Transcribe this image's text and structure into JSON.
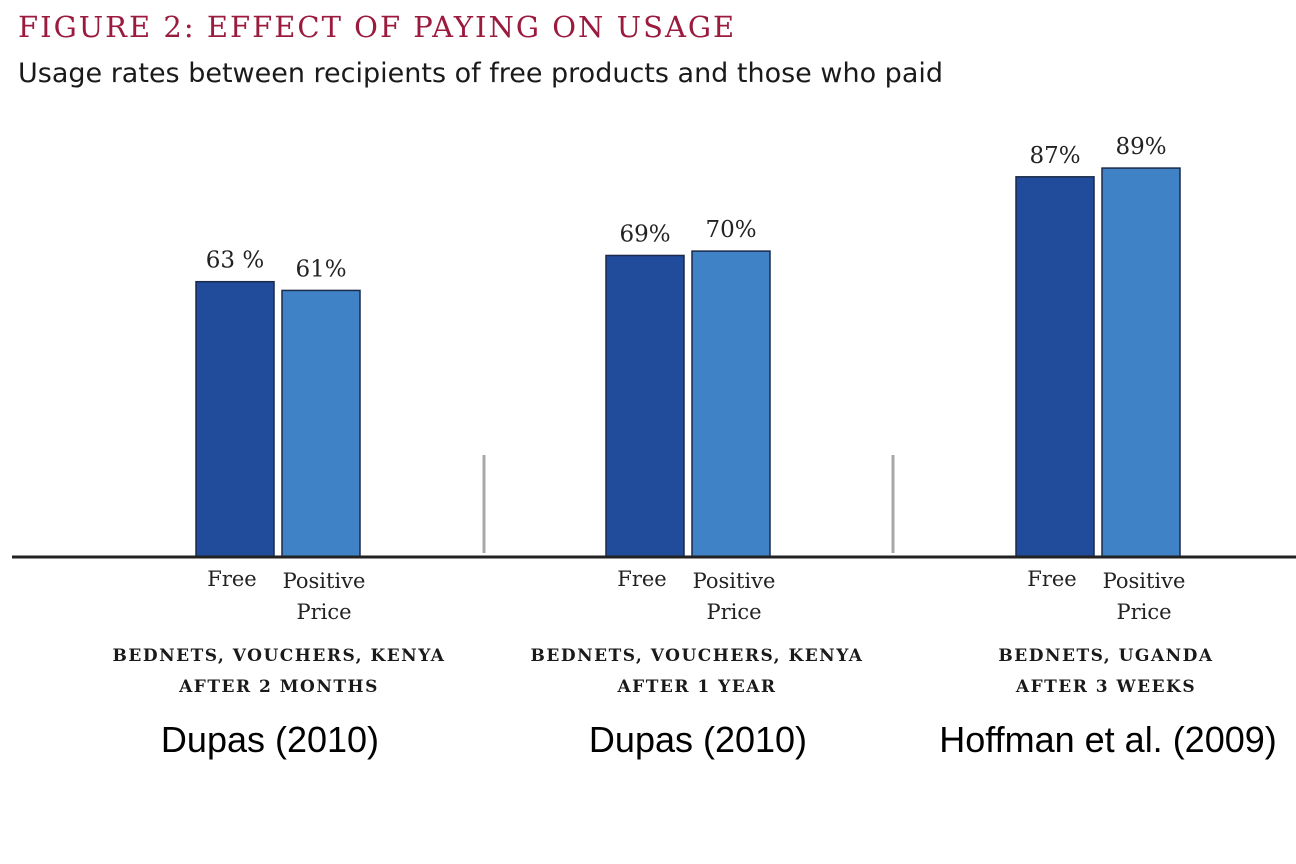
{
  "title": "FIGURE 2: EFFECT OF PAYING ON USAGE",
  "subtitle": "Usage rates between recipients of free products and those who paid",
  "colors": {
    "free": "#214c9b",
    "positive_price": "#3f83c6",
    "title": "#9b1b3f",
    "axis": "#222222",
    "divider": "#a8a8a8"
  },
  "chart_data": {
    "type": "bar",
    "ylim": [
      0,
      100
    ],
    "grid": false,
    "legend": "none",
    "groups": [
      {
        "label_line1": "BEDNETS, VOUCHERS, KENYA",
        "label_line2": "AFTER 2 MONTHS",
        "citation": "Dupas (2010)",
        "bars": [
          {
            "category": "Free",
            "value": 63,
            "label": "63 %"
          },
          {
            "category": "Positive Price",
            "value": 61,
            "label": "61%"
          }
        ]
      },
      {
        "label_line1": "BEDNETS, VOUCHERS, KENYA",
        "label_line2": "AFTER 1 YEAR",
        "citation": "Dupas (2010)",
        "bars": [
          {
            "category": "Free",
            "value": 69,
            "label": "69%"
          },
          {
            "category": "Positive Price",
            "value": 70,
            "label": "70%"
          }
        ]
      },
      {
        "label_line1": "BEDNETS, UGANDA",
        "label_line2": "AFTER 3 WEEKS",
        "citation": "Hoffman et al. (2009)",
        "bars": [
          {
            "category": "Free",
            "value": 87,
            "label": "87%"
          },
          {
            "category": "Positive Price",
            "value": 89,
            "label": "89%"
          }
        ]
      }
    ]
  }
}
